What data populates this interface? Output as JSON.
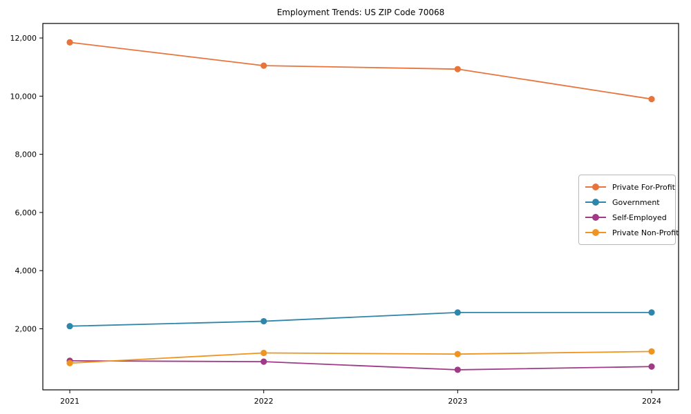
{
  "figure": {
    "title": "Employment Trends: US ZIP Code 70068",
    "background_color": "#ffffff",
    "axes_frame_color": "#000000",
    "tick_label_color": "#000000"
  },
  "chart_data": {
    "type": "line",
    "title": "Employment Trends: US ZIP Code 70068",
    "xlabel": "",
    "ylabel": "",
    "x": [
      "2021",
      "2022",
      "2023",
      "2024"
    ],
    "ylim": [
      -100,
      12500
    ],
    "yticks": [
      {
        "value": 2000,
        "label": "2,000"
      },
      {
        "value": 4000,
        "label": "4,000"
      },
      {
        "value": 6000,
        "label": "6,000"
      },
      {
        "value": 8000,
        "label": "8,000"
      },
      {
        "value": 10000,
        "label": "10,000"
      },
      {
        "value": 12000,
        "label": "12,000"
      }
    ],
    "grid": false,
    "legend_position": "center right",
    "marker": "circle",
    "series": [
      {
        "name": "Private For-Profit",
        "color": "#E8743B",
        "values": [
          11850,
          11050,
          10930,
          9900
        ]
      },
      {
        "name": "Government",
        "color": "#2E86AB",
        "values": [
          2090,
          2260,
          2560,
          2560
        ]
      },
      {
        "name": "Self-Employed",
        "color": "#A03A87",
        "values": [
          900,
          870,
          590,
          700
        ]
      },
      {
        "name": "Private Non-Profit",
        "color": "#F0941F",
        "values": [
          820,
          1170,
          1130,
          1220
        ]
      }
    ]
  }
}
